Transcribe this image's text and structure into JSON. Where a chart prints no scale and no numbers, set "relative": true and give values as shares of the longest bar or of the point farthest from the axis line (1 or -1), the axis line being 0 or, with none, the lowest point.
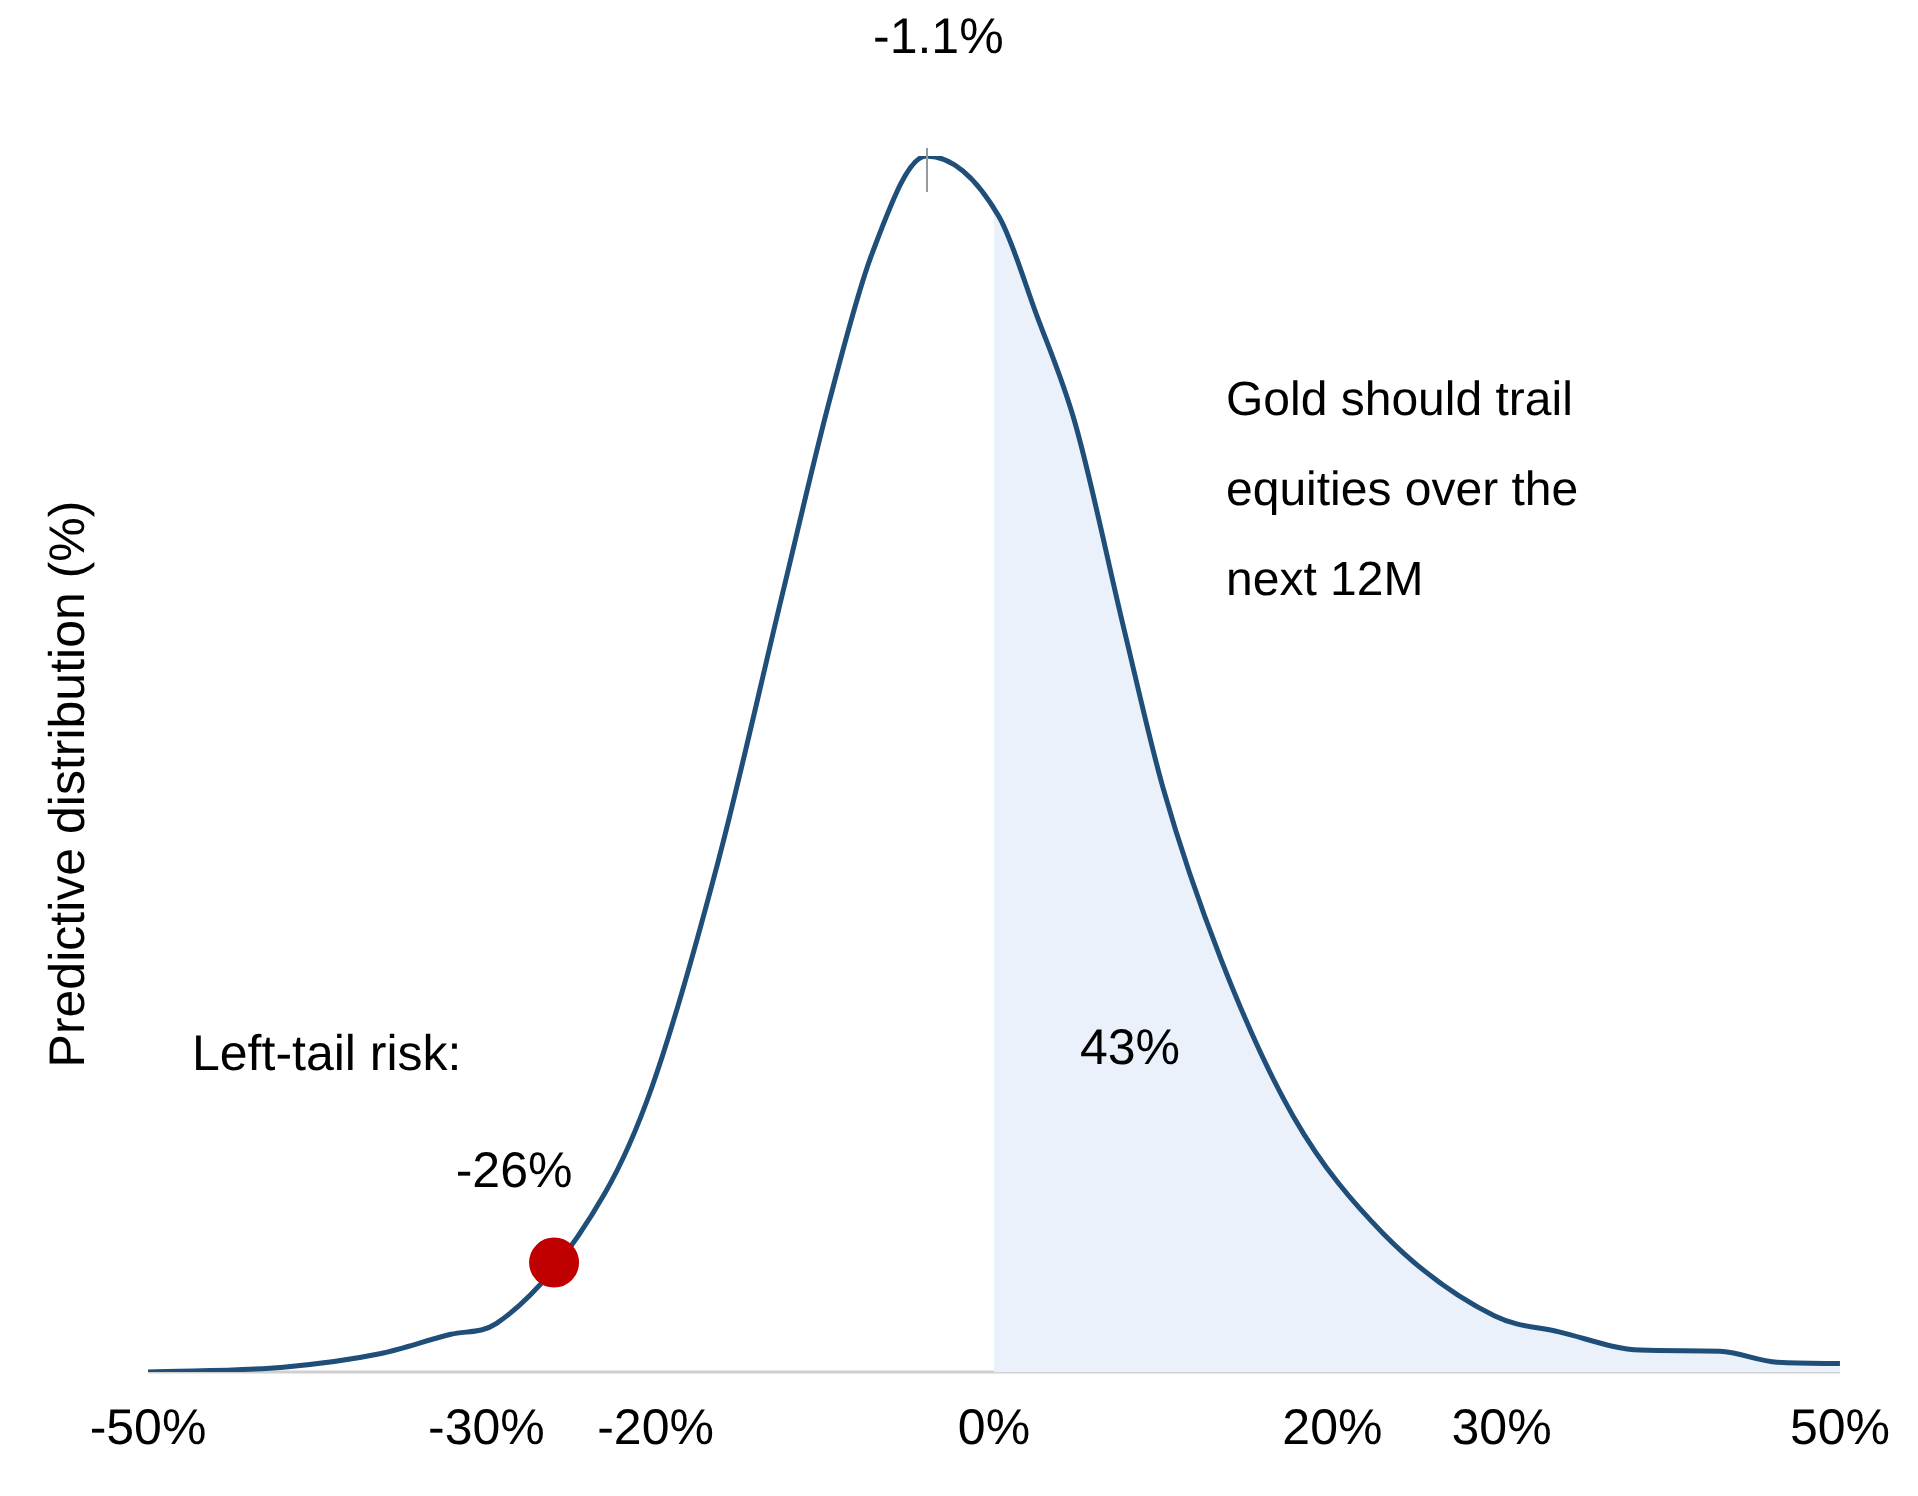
{
  "chart_data": {
    "type": "line",
    "ylabel": "Predictive distribution (%)",
    "relative": true,
    "x": [
      -50,
      -42,
      -36.3,
      -32.1,
      -29.4,
      -26,
      -23,
      -20.2,
      -16.3,
      -12.5,
      -9.7,
      -7.2,
      -4,
      0.3,
      2.5,
      4.8,
      7.7,
      10,
      13.4,
      17.7,
      23,
      29.6,
      33.4,
      38.2,
      42.9,
      46.3,
      50
    ],
    "series": [
      {
        "type": "area",
        "color": "#eaf1fa",
        "x": [
          0,
          0.3,
          2.5,
          4.8,
          7.7,
          10,
          13.4,
          17.7,
          23,
          29.6,
          33.4,
          38.2,
          42.9,
          46.3,
          50
        ],
        "values": [
          0.955,
          0.95,
          0.87,
          0.78,
          0.61,
          0.48,
          0.34,
          0.21,
          0.114,
          0.046,
          0.033,
          0.018,
          0.017,
          0.008,
          0.007
        ]
      },
      {
        "color": "#1f4e79",
        "values": [
          0,
          0.004,
          0.015,
          0.031,
          0.04,
          null,
          0.147,
          0.235,
          0.42,
          0.64,
          0.8,
          0.92,
          1,
          0.95,
          0.87,
          0.78,
          0.61,
          0.48,
          0.34,
          0.21,
          0.114,
          0.046,
          0.033,
          0.018,
          0.017,
          0.008,
          0.007
        ]
      },
      {
        "type": "scatter",
        "color": "#c00000",
        "marker": "circle",
        "x": [
          -26
        ],
        "values": [
          0.09
        ]
      }
    ],
    "xlim": [
      -50,
      50
    ],
    "xticks": [
      {
        "value": -50,
        "label": "-50%"
      },
      {
        "value": -30,
        "label": "-30%"
      },
      {
        "value": -20,
        "label": "-20%"
      },
      {
        "value": 0,
        "label": "0%"
      },
      {
        "value": 20,
        "label": "20%"
      },
      {
        "value": 30,
        "label": "30%"
      },
      {
        "value": 50,
        "label": "50%"
      }
    ],
    "annotations": [
      {
        "text": "-1.1%",
        "x": -4,
        "y": 1
      },
      "Left-tail risk:",
      {
        "text": "-26%",
        "x": -26,
        "y": 0.09
      },
      "Gold should trail equities over the next 12M",
      "43%"
    ],
    "grid": false,
    "legend": false,
    "marker": "none",
    "line_style": "solid",
    "tick_labels": "x"
  }
}
